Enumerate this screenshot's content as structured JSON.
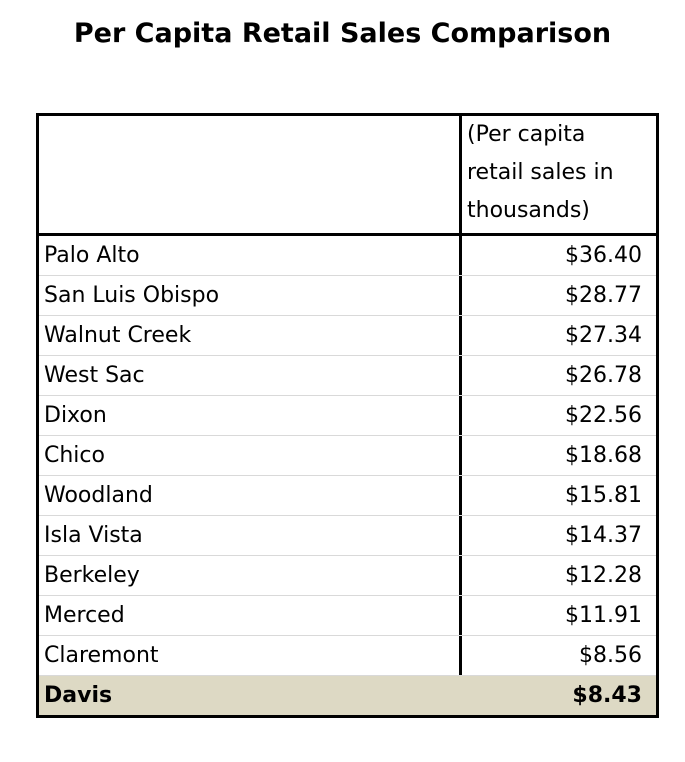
{
  "title": "Per Capita Retail Sales Comparison",
  "table": {
    "header": {
      "left": "",
      "right_lines": [
        "(Per capita",
        "retail sales in",
        "thousands)"
      ]
    },
    "rows": [
      {
        "city": "Palo Alto",
        "value": "$36.40"
      },
      {
        "city": "San Luis Obispo",
        "value": "$28.77"
      },
      {
        "city": "Walnut Creek",
        "value": "$27.34"
      },
      {
        "city": "West Sac",
        "value": "$26.78"
      },
      {
        "city": "Dixon",
        "value": "$22.56"
      },
      {
        "city": "Chico",
        "value": "$18.68"
      },
      {
        "city": "Woodland",
        "value": "$15.81"
      },
      {
        "city": "Isla Vista",
        "value": "$14.37"
      },
      {
        "city": "Berkeley",
        "value": "$12.28"
      },
      {
        "city": "Merced",
        "value": "$11.91"
      },
      {
        "city": "Claremont",
        "value": "$8.56"
      },
      {
        "city": "Davis",
        "value": "$8.43",
        "highlighted": true
      }
    ],
    "highlight_color": "#ddd9c4"
  }
}
